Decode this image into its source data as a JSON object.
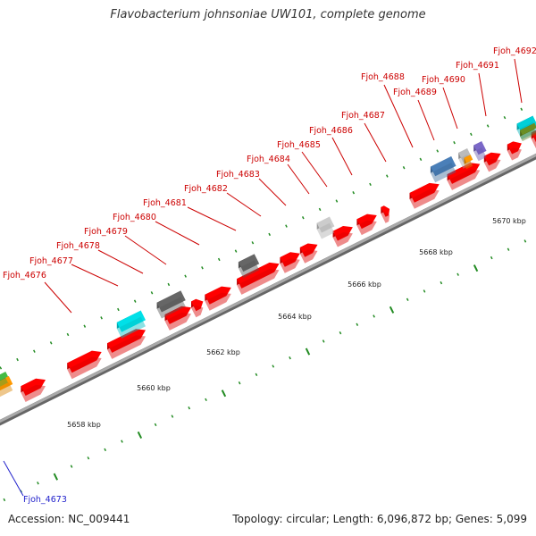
{
  "title": "Flavobacterium johnsoniae UW101, complete genome",
  "accession_text": "Accession: NC_009441",
  "summary_text": "Topology: circular; Length: 6,096,872 bp; Genes: 5,099",
  "ruler": {
    "unit_suffix": "kbp",
    "labels": [
      "5658 kbp",
      "5660 kbp",
      "5662 kbp",
      "5664 kbp",
      "5666 kbp",
      "5668 kbp",
      "5670 kbp"
    ]
  },
  "genes": [
    {
      "label": "Fjoh_4673",
      "strand": "reverse",
      "color": "#2222cc"
    },
    {
      "label": "Fjoh_4676",
      "strand": "forward",
      "color": "#00e0e8"
    },
    {
      "label": "Fjoh_4677",
      "strand": "forward",
      "color": "#ff0000"
    },
    {
      "label": "Fjoh_4678",
      "strand": "forward",
      "color": "#666666"
    },
    {
      "label": "Fjoh_4679",
      "strand": "forward",
      "color": "#ff0000"
    },
    {
      "label": "Fjoh_4680",
      "strand": "forward",
      "color": "#ff0000"
    },
    {
      "label": "Fjoh_4681",
      "strand": "forward",
      "color": "#ff0000"
    },
    {
      "label": "Fjoh_4682",
      "strand": "forward",
      "color": "#666666"
    },
    {
      "label": "Fjoh_4683",
      "strand": "forward",
      "color": "#ff0000"
    },
    {
      "label": "Fjoh_4684",
      "strand": "forward",
      "color": "#cccccc"
    },
    {
      "label": "Fjoh_4685",
      "strand": "forward",
      "color": "#ff0000"
    },
    {
      "label": "Fjoh_4686",
      "strand": "forward",
      "color": "#ff0000"
    },
    {
      "label": "Fjoh_4687",
      "strand": "forward",
      "color": "#4a7fb8"
    },
    {
      "label": "Fjoh_4688",
      "strand": "forward",
      "color": "#bbbbbb"
    },
    {
      "label": "Fjoh_4689",
      "strand": "forward",
      "color": "#7b68c8"
    },
    {
      "label": "Fjoh_4690",
      "strand": "forward",
      "color": "#ff0000"
    },
    {
      "label": "Fjoh_4691",
      "strand": "forward",
      "color": "#00d0d8"
    },
    {
      "label": "Fjoh_4692",
      "strand": "forward",
      "color": "#ff9900"
    }
  ],
  "colors": {
    "cds_fill": "#ff0000",
    "backbone": "#aaaaaa",
    "tick": "#228b22",
    "forward_label": "#cc0000",
    "reverse_label": "#2222cc",
    "title": "#333333"
  }
}
